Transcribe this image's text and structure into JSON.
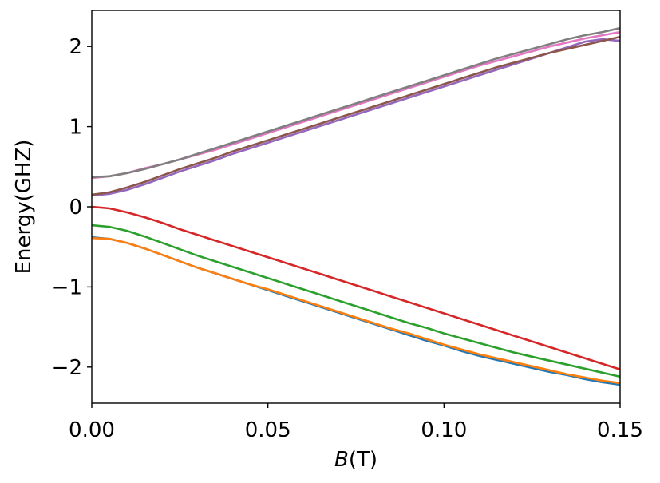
{
  "chart_data": {
    "type": "line",
    "title": "",
    "xlabel_var": "B",
    "xlabel_unit": "(T)",
    "ylabel": "Energy(GHZ)",
    "xlim": [
      0,
      0.15
    ],
    "ylim": [
      -2.45,
      2.45
    ],
    "grid": false,
    "legend": "none",
    "x_ticks": [
      {
        "value": 0.0,
        "label": "0.00"
      },
      {
        "value": 0.05,
        "label": "0.05"
      },
      {
        "value": 0.1,
        "label": "0.10"
      },
      {
        "value": 0.15,
        "label": "0.15"
      }
    ],
    "y_ticks": [
      {
        "value": -2,
        "label": "−2"
      },
      {
        "value": -1,
        "label": "−1"
      },
      {
        "value": 0,
        "label": "0"
      },
      {
        "value": 1,
        "label": "1"
      },
      {
        "value": 2,
        "label": "2"
      }
    ],
    "x": [
      0,
      0.005,
      0.01,
      0.015,
      0.02,
      0.025,
      0.03,
      0.035,
      0.04,
      0.045,
      0.05,
      0.055,
      0.06,
      0.065,
      0.07,
      0.075,
      0.08,
      0.085,
      0.09,
      0.095,
      0.1,
      0.105,
      0.11,
      0.115,
      0.12,
      0.125,
      0.13,
      0.135,
      0.14,
      0.145,
      0.15
    ],
    "series": [
      {
        "color": "#1f77b4",
        "values": [
          -0.38,
          -0.4,
          -0.45,
          -0.52,
          -0.6,
          -0.68,
          -0.76,
          -0.83,
          -0.9,
          -0.97,
          -1.04,
          -1.11,
          -1.18,
          -1.25,
          -1.32,
          -1.39,
          -1.46,
          -1.53,
          -1.6,
          -1.67,
          -1.73,
          -1.8,
          -1.86,
          -1.91,
          -1.96,
          -2.01,
          -2.06,
          -2.1,
          -2.15,
          -2.19,
          -2.22
        ]
      },
      {
        "color": "#ff7f0e",
        "values": [
          -0.39,
          -0.4,
          -0.45,
          -0.52,
          -0.6,
          -0.68,
          -0.76,
          -0.83,
          -0.9,
          -0.97,
          -1.03,
          -1.1,
          -1.17,
          -1.24,
          -1.31,
          -1.38,
          -1.45,
          -1.52,
          -1.58,
          -1.65,
          -1.72,
          -1.78,
          -1.84,
          -1.89,
          -1.94,
          -1.99,
          -2.04,
          -2.09,
          -2.13,
          -2.17,
          -2.2
        ]
      },
      {
        "color": "#2ca02c",
        "values": [
          -0.23,
          -0.25,
          -0.3,
          -0.37,
          -0.45,
          -0.53,
          -0.61,
          -0.68,
          -0.75,
          -0.82,
          -0.89,
          -0.96,
          -1.03,
          -1.1,
          -1.17,
          -1.24,
          -1.31,
          -1.38,
          -1.45,
          -1.51,
          -1.58,
          -1.64,
          -1.7,
          -1.76,
          -1.82,
          -1.87,
          -1.92,
          -1.97,
          -2.02,
          -2.07,
          -2.12
        ]
      },
      {
        "color": "#d62728",
        "values": [
          0.0,
          -0.02,
          -0.07,
          -0.13,
          -0.2,
          -0.28,
          -0.35,
          -0.42,
          -0.49,
          -0.56,
          -0.63,
          -0.7,
          -0.77,
          -0.84,
          -0.91,
          -0.98,
          -1.05,
          -1.12,
          -1.19,
          -1.26,
          -1.33,
          -1.4,
          -1.47,
          -1.54,
          -1.61,
          -1.68,
          -1.75,
          -1.82,
          -1.89,
          -1.96,
          -2.03
        ]
      },
      {
        "color": "#9467bd",
        "values": [
          0.14,
          0.16,
          0.21,
          0.28,
          0.36,
          0.44,
          0.51,
          0.58,
          0.66,
          0.73,
          0.8,
          0.87,
          0.94,
          1.01,
          1.08,
          1.15,
          1.22,
          1.29,
          1.36,
          1.43,
          1.5,
          1.57,
          1.64,
          1.71,
          1.78,
          1.85,
          1.92,
          1.99,
          2.06,
          2.09,
          2.07
        ]
      },
      {
        "color": "#8c564b",
        "values": [
          0.15,
          0.18,
          0.24,
          0.31,
          0.39,
          0.47,
          0.54,
          0.61,
          0.69,
          0.76,
          0.83,
          0.9,
          0.97,
          1.04,
          1.11,
          1.18,
          1.25,
          1.32,
          1.39,
          1.46,
          1.53,
          1.6,
          1.67,
          1.74,
          1.8,
          1.86,
          1.92,
          1.97,
          2.02,
          2.07,
          2.12
        ]
      },
      {
        "color": "#e377c2",
        "values": [
          0.36,
          0.38,
          0.42,
          0.48,
          0.53,
          0.59,
          0.65,
          0.71,
          0.78,
          0.85,
          0.92,
          0.99,
          1.06,
          1.13,
          1.2,
          1.27,
          1.34,
          1.41,
          1.48,
          1.55,
          1.62,
          1.69,
          1.76,
          1.82,
          1.88,
          1.94,
          2.0,
          2.05,
          2.1,
          2.14,
          2.18
        ]
      },
      {
        "color": "#7f7f7f",
        "values": [
          0.37,
          0.38,
          0.42,
          0.47,
          0.53,
          0.59,
          0.66,
          0.73,
          0.8,
          0.87,
          0.94,
          1.01,
          1.08,
          1.15,
          1.22,
          1.29,
          1.36,
          1.43,
          1.5,
          1.57,
          1.64,
          1.71,
          1.78,
          1.85,
          1.91,
          1.97,
          2.03,
          2.09,
          2.14,
          2.18,
          2.23
        ]
      }
    ]
  }
}
